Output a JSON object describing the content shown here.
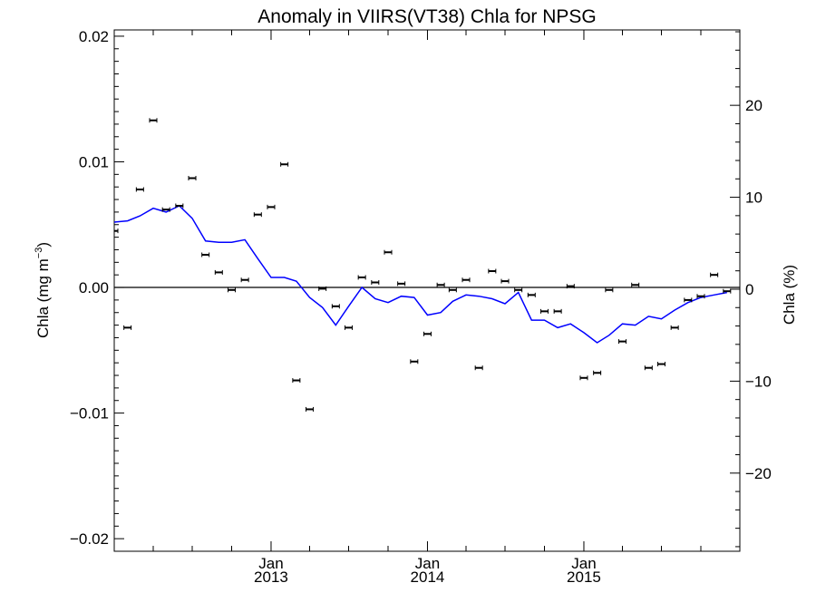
{
  "chart_data": {
    "type": "line",
    "title": "Anomaly in VIIRS(VT38) Chla for NPSG",
    "ylabel": "Chla (mg m",
    "ylabel_sup": "−3",
    "ylabel_end": ")",
    "y2label": "Chla (%)",
    "ylim": [
      -0.021,
      0.0205
    ],
    "y2lim": [
      -28.5,
      28.2
    ],
    "xlim": [
      "2012-01-01",
      "2015-12-31"
    ],
    "y_ticks": [
      {
        "value": -0.02,
        "label": "−0.02"
      },
      {
        "value": -0.01,
        "label": "−0.01"
      },
      {
        "value": 0.0,
        "label": "0.00"
      },
      {
        "value": 0.01,
        "label": "0.01"
      },
      {
        "value": 0.02,
        "label": "0.02"
      }
    ],
    "y2_ticks": [
      {
        "value": -20,
        "label": "−20"
      },
      {
        "value": -10,
        "label": "−10"
      },
      {
        "value": 0,
        "label": "0"
      },
      {
        "value": 10,
        "label": "10"
      },
      {
        "value": 20,
        "label": "20"
      }
    ],
    "x_ticks": [
      {
        "date": "2013-01-01",
        "month": "Jan",
        "year": "2013"
      },
      {
        "date": "2014-01-01",
        "month": "Jan",
        "year": "2014"
      },
      {
        "date": "2015-01-01",
        "month": "Jan",
        "year": "2015"
      }
    ],
    "zero_line": 0.0,
    "series": [
      {
        "kind": "points",
        "color": "#000000",
        "x": [
          "2012-01-01",
          "2012-02-01",
          "2012-03-01",
          "2012-04-01",
          "2012-05-01",
          "2012-06-01",
          "2012-07-01",
          "2012-08-01",
          "2012-09-01",
          "2012-10-01",
          "2012-11-01",
          "2012-12-01",
          "2013-01-01",
          "2013-02-01",
          "2013-03-01",
          "2013-04-01",
          "2013-05-01",
          "2013-06-01",
          "2013-07-01",
          "2013-08-01",
          "2013-09-01",
          "2013-10-01",
          "2013-11-01",
          "2013-12-01",
          "2014-01-01",
          "2014-02-01",
          "2014-03-01",
          "2014-04-01",
          "2014-05-01",
          "2014-06-01",
          "2014-07-01",
          "2014-08-01",
          "2014-09-01",
          "2014-10-01",
          "2014-11-01",
          "2014-12-01",
          "2015-01-01",
          "2015-02-01",
          "2015-03-01",
          "2015-04-01",
          "2015-05-01",
          "2015-06-01",
          "2015-07-01",
          "2015-08-01",
          "2015-09-01",
          "2015-10-01",
          "2015-11-01",
          "2015-12-01"
        ],
        "y": [
          0.0045,
          -0.0032,
          0.0078,
          0.0133,
          0.0062,
          0.0065,
          0.0087,
          0.0026,
          0.0012,
          -0.0002,
          0.0006,
          0.0058,
          0.0064,
          0.0098,
          -0.0074,
          -0.0097,
          -0.0001,
          -0.0015,
          -0.0032,
          0.0008,
          0.0004,
          0.0028,
          0.0003,
          -0.0059,
          -0.0037,
          0.0002,
          -0.0002,
          0.0006,
          -0.0064,
          0.0013,
          0.0005,
          -0.0002,
          -0.0006,
          -0.0019,
          -0.0019,
          0.0001,
          -0.0072,
          -0.0068,
          -0.0002,
          -0.0043,
          0.0002,
          -0.0064,
          -0.0061,
          -0.0032,
          -0.001,
          -0.0007,
          0.001,
          -0.0003
        ]
      },
      {
        "kind": "line",
        "color": "#0000ff",
        "x": [
          "2012-01-01",
          "2012-02-01",
          "2012-03-01",
          "2012-04-01",
          "2012-05-01",
          "2012-06-01",
          "2012-07-01",
          "2012-08-01",
          "2012-09-01",
          "2012-10-01",
          "2012-11-01",
          "2012-12-01",
          "2013-01-01",
          "2013-02-01",
          "2013-03-01",
          "2013-04-01",
          "2013-05-01",
          "2013-06-01",
          "2013-07-01",
          "2013-08-01",
          "2013-09-01",
          "2013-10-01",
          "2013-11-01",
          "2013-12-01",
          "2014-01-01",
          "2014-02-01",
          "2014-03-01",
          "2014-04-01",
          "2014-05-01",
          "2014-06-01",
          "2014-07-01",
          "2014-08-01",
          "2014-09-01",
          "2014-10-01",
          "2014-11-01",
          "2014-12-01",
          "2015-01-01",
          "2015-02-01",
          "2015-03-01",
          "2015-04-01",
          "2015-05-01",
          "2015-06-01",
          "2015-07-01",
          "2015-08-01",
          "2015-09-01",
          "2015-10-01",
          "2015-11-01",
          "2015-12-01"
        ],
        "y": [
          0.0052,
          0.0053,
          0.0057,
          0.0063,
          0.006,
          0.0065,
          0.0055,
          0.0037,
          0.0036,
          0.0036,
          0.0038,
          0.0023,
          0.0008,
          0.0008,
          0.0005,
          -0.0008,
          -0.0016,
          -0.003,
          -0.0015,
          0.0,
          -0.0009,
          -0.0012,
          -0.0007,
          -0.0008,
          -0.0022,
          -0.002,
          -0.0011,
          -0.0006,
          -0.0007,
          -0.0009,
          -0.0013,
          -0.0004,
          -0.0026,
          -0.0026,
          -0.0032,
          -0.0029,
          -0.0036,
          -0.0044,
          -0.0038,
          -0.0029,
          -0.003,
          -0.0023,
          -0.0025,
          -0.0018,
          -0.0012,
          -0.0008,
          -0.0006,
          -0.0004
        ]
      }
    ]
  }
}
